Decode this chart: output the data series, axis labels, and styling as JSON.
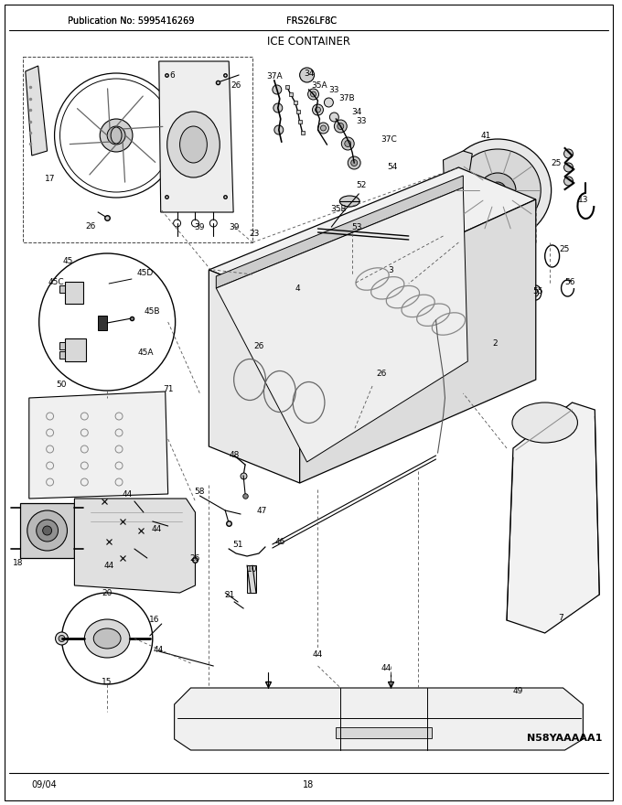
{
  "title": "ICE CONTAINER",
  "pub_no": "Publication No: 5995416269",
  "model": "FRS26LF8C",
  "date": "09/04",
  "page": "18",
  "diagram_id": "N58YAAAAA1",
  "bg_color": "#ffffff",
  "line_color": "#000000",
  "text_color": "#000000",
  "fig_width": 6.8,
  "fig_height": 8.8,
  "dpi": 100,
  "gray1": "#f5f5f5",
  "gray2": "#e8e8e8",
  "gray3": "#d8d8d8",
  "gray4": "#c8c8c8",
  "gray5": "#b8b8b8",
  "part_labels": [
    [
      190,
      82,
      "6"
    ],
    [
      260,
      93,
      "26"
    ],
    [
      55,
      195,
      "17"
    ],
    [
      100,
      247,
      "26"
    ],
    [
      220,
      248,
      "39"
    ],
    [
      258,
      248,
      "39"
    ],
    [
      280,
      255,
      "23"
    ],
    [
      75,
      285,
      "45"
    ],
    [
      160,
      298,
      "45D"
    ],
    [
      62,
      308,
      "45C"
    ],
    [
      168,
      340,
      "45B"
    ],
    [
      160,
      385,
      "45A"
    ],
    [
      68,
      420,
      "50"
    ],
    [
      185,
      425,
      "71"
    ],
    [
      20,
      615,
      "18"
    ],
    [
      118,
      648,
      "20"
    ],
    [
      140,
      540,
      "44"
    ],
    [
      172,
      578,
      "44"
    ],
    [
      120,
      618,
      "44"
    ],
    [
      215,
      610,
      "26"
    ],
    [
      220,
      537,
      "58"
    ],
    [
      288,
      558,
      "47"
    ],
    [
      258,
      497,
      "48"
    ],
    [
      262,
      595,
      "51"
    ],
    [
      308,
      592,
      "46"
    ],
    [
      278,
      622,
      "10"
    ],
    [
      253,
      650,
      "21"
    ],
    [
      174,
      710,
      "44"
    ],
    [
      350,
      715,
      "44"
    ],
    [
      170,
      677,
      "16"
    ],
    [
      118,
      745,
      "15"
    ],
    [
      425,
      730,
      "44"
    ],
    [
      570,
      755,
      "49"
    ],
    [
      328,
      315,
      "4"
    ],
    [
      285,
      378,
      "26"
    ],
    [
      420,
      408,
      "26"
    ],
    [
      545,
      375,
      "2"
    ],
    [
      430,
      295,
      "3"
    ],
    [
      302,
      83,
      "37A"
    ],
    [
      340,
      80,
      "34"
    ],
    [
      352,
      93,
      "35A"
    ],
    [
      368,
      98,
      "33"
    ],
    [
      382,
      107,
      "37B"
    ],
    [
      393,
      122,
      "34"
    ],
    [
      398,
      132,
      "33"
    ],
    [
      428,
      152,
      "37C"
    ],
    [
      432,
      182,
      "54"
    ],
    [
      398,
      202,
      "52"
    ],
    [
      373,
      228,
      "35B"
    ],
    [
      393,
      248,
      "53"
    ],
    [
      535,
      148,
      "41"
    ],
    [
      612,
      178,
      "25"
    ],
    [
      642,
      218,
      "13"
    ],
    [
      622,
      272,
      "25"
    ],
    [
      592,
      318,
      "55"
    ],
    [
      628,
      308,
      "56"
    ],
    [
      618,
      675,
      "7"
    ]
  ]
}
